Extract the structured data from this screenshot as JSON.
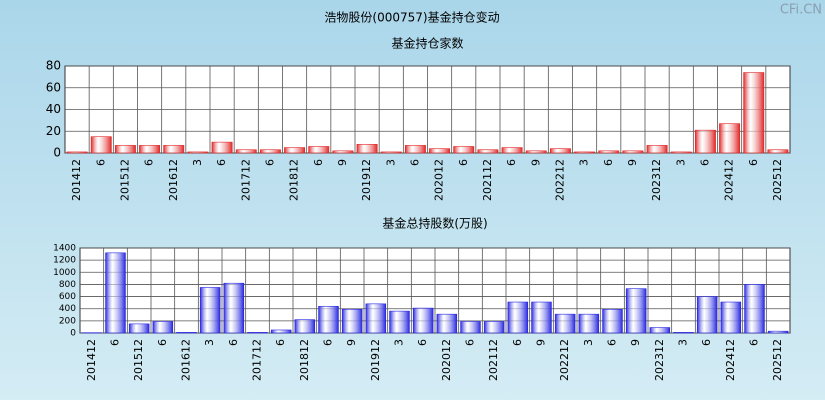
{
  "title": "浩物股份(000757)基金持仓变动",
  "watermark": "CFi.CN",
  "chart_data": [
    {
      "type": "bar",
      "title": "基金持仓家数",
      "categories": [
        "201412",
        "6",
        "201512",
        "6",
        "201612",
        "3",
        "6",
        "201712",
        "6",
        "201812",
        "6",
        "9",
        "201912",
        "3",
        "6",
        "202012",
        "6",
        "202112",
        "6",
        "9",
        "202212",
        "3",
        "6",
        "9",
        "202312",
        "3",
        "6",
        "202412",
        "6",
        "202512"
      ],
      "values": [
        1,
        15,
        7,
        7,
        7,
        1,
        10,
        3,
        3,
        5,
        6,
        2,
        8,
        1,
        7,
        4,
        6,
        3,
        5,
        2,
        4,
        1,
        2,
        2,
        7,
        1,
        21,
        27,
        74,
        3
      ],
      "color": "#e02828",
      "ylim": [
        0,
        80
      ],
      "yticks": [
        0,
        20,
        40,
        60,
        80
      ],
      "grid": true
    },
    {
      "type": "bar",
      "title": "基金总持股数(万股)",
      "categories": [
        "201412",
        "6",
        "201512",
        "6",
        "201612",
        "3",
        "6",
        "201712",
        "6",
        "201812",
        "6",
        "9",
        "201912",
        "3",
        "6",
        "202012",
        "6",
        "202112",
        "6",
        "9",
        "202212",
        "3",
        "6",
        "9",
        "202312",
        "3",
        "6",
        "202412",
        "6",
        "202512"
      ],
      "values": [
        5,
        1320,
        150,
        190,
        10,
        750,
        820,
        10,
        50,
        220,
        440,
        390,
        480,
        360,
        410,
        310,
        190,
        190,
        510,
        510,
        310,
        310,
        390,
        730,
        90,
        10,
        600,
        510,
        800,
        30
      ],
      "color": "#2828e0",
      "ylim": [
        0,
        1400
      ],
      "yticks": [
        0,
        200,
        400,
        600,
        800,
        1000,
        1200,
        1400
      ],
      "grid": true
    }
  ]
}
